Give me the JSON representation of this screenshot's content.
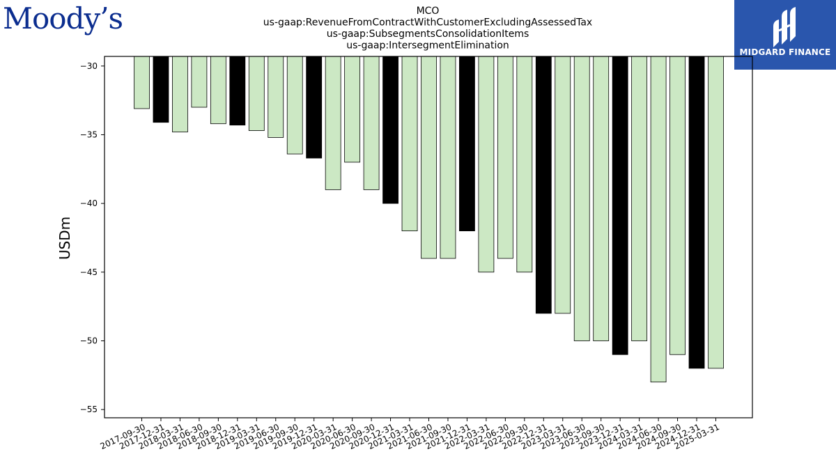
{
  "logos": {
    "left_text": "Moody’s",
    "right_text": "MIDGARD FINANCE"
  },
  "chart_data": {
    "type": "bar",
    "title_lines": [
      "MCO",
      "us-gaap:RevenueFromContractWithCustomerExcludingAssessedTax",
      "us-gaap:SubsegmentsConsolidationItems",
      "us-gaap:IntersegmentElimination"
    ],
    "xlabel": "",
    "ylabel": "USDm",
    "ylim": [
      -55.6,
      -29.3
    ],
    "yticks": [
      -30,
      -35,
      -40,
      -45,
      -50,
      -55
    ],
    "grid": false,
    "categories": [
      "2017-09-30",
      "2017-12-31",
      "2018-03-31",
      "2018-06-30",
      "2018-09-30",
      "2018-12-31",
      "2019-03-31",
      "2019-06-30",
      "2019-09-30",
      "2019-12-31",
      "2020-03-31",
      "2020-06-30",
      "2020-09-30",
      "2020-12-31",
      "2021-03-31",
      "2021-06-30",
      "2021-09-30",
      "2021-12-31",
      "2022-03-31",
      "2022-06-30",
      "2022-09-30",
      "2022-12-31",
      "2023-03-31",
      "2023-06-30",
      "2023-09-30",
      "2023-12-31",
      "2024-03-31",
      "2024-06-30",
      "2024-09-30",
      "2024-12-31",
      "2025-03-31"
    ],
    "values": [
      -33.1,
      -34.1,
      -34.8,
      -33,
      -34.2,
      -34.3,
      -34.7,
      -35.2,
      -36.4,
      -36.7,
      -39,
      -37,
      -39,
      -40,
      -42,
      -44,
      -44,
      -42,
      -45,
      -44,
      -45,
      -48,
      -48,
      -50,
      -50,
      -51,
      -50,
      -53,
      -51,
      -52,
      -52
    ],
    "bar_colors": {
      "quarter": "#cce8c4",
      "year_end": "#000000",
      "edge": "#000000"
    }
  }
}
